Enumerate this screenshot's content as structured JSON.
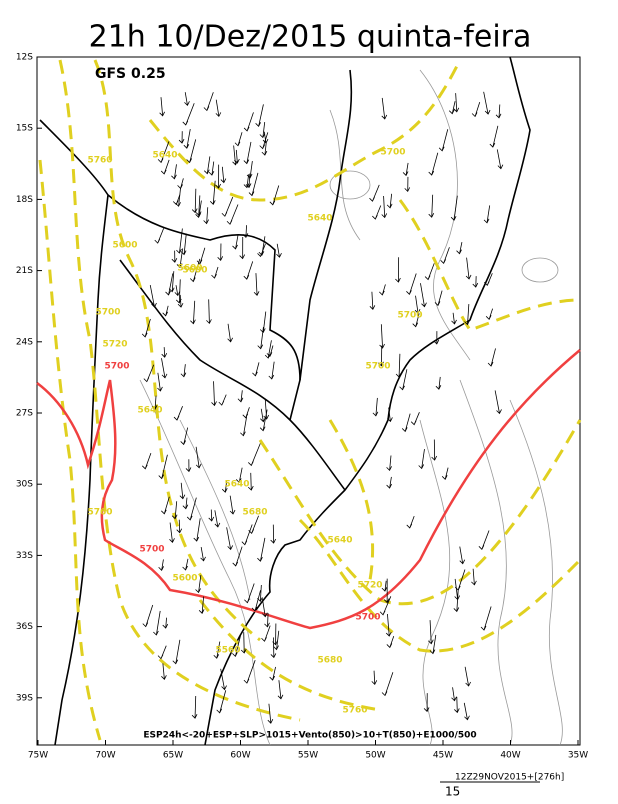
{
  "title": "21h 10/Dez/2015 quinta-feira",
  "model": "GFS 0.25",
  "lat_labels": [
    "12S",
    "15S",
    "18S",
    "21S",
    "24S",
    "27S",
    "30S",
    "33S",
    "36S",
    "39S"
  ],
  "lon_labels": [
    "75W",
    "70W",
    "65W",
    "60W",
    "55W",
    "50W",
    "45W",
    "40W",
    "35W"
  ],
  "contour_labels": [
    "5700",
    "5700",
    "5700",
    "5700",
    "5640",
    "5760",
    "5600",
    "5600",
    "5700",
    "5720",
    "5700",
    "5700",
    "5640",
    "5600",
    "5640",
    "5680",
    "5640",
    "5600",
    "5560",
    "5760",
    "5720",
    "5680",
    "5760",
    "5640"
  ],
  "legend_line": "ESP24h<-20+ESP+SLP>1015+Vento(850)>10+T(850)+E1000/500",
  "run": "12Z29NOV2015+[276h]",
  "scale": "15"
}
